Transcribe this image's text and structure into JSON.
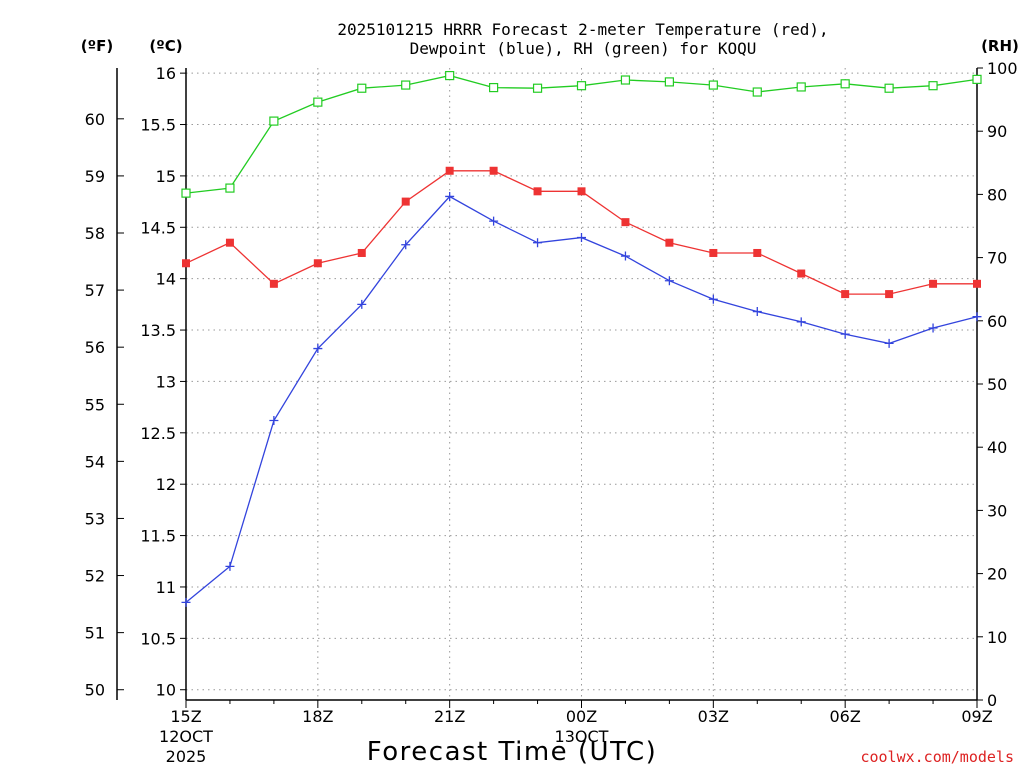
{
  "chart_data": {
    "type": "line",
    "title_line1": "2025101215 HRRR Forecast 2-meter Temperature (red),",
    "title_line2": "Dewpoint (blue), RH (green) for KOQU",
    "unit_labels": {
      "fahrenheit": "(ºF)",
      "celsius": "(ºC)",
      "rh": "(RH)"
    },
    "xlabel": "Forecast Time (UTC)",
    "watermark": "coolwx.com/models",
    "x_hours": [
      0,
      1,
      2,
      3,
      4,
      5,
      6,
      7,
      8,
      9,
      10,
      11,
      12,
      13,
      14,
      15,
      16,
      17,
      18
    ],
    "x_ticks": [
      {
        "hour": 0,
        "label": "15Z",
        "sub1": "12OCT",
        "sub2": "2025"
      },
      {
        "hour": 3,
        "label": "18Z",
        "sub1": "",
        "sub2": ""
      },
      {
        "hour": 6,
        "label": "21Z",
        "sub1": "",
        "sub2": ""
      },
      {
        "hour": 9,
        "label": "00Z",
        "sub1": "13OCT",
        "sub2": ""
      },
      {
        "hour": 12,
        "label": "03Z",
        "sub1": "",
        "sub2": ""
      },
      {
        "hour": 15,
        "label": "06Z",
        "sub1": "",
        "sub2": ""
      },
      {
        "hour": 18,
        "label": "09Z",
        "sub1": "",
        "sub2": ""
      }
    ],
    "celsius_axis": {
      "range": [
        9.9,
        16.05
      ],
      "ticks": [
        10,
        10.5,
        11,
        11.5,
        12,
        12.5,
        13,
        13.5,
        14,
        14.5,
        15,
        15.5,
        16
      ],
      "tick_labels": [
        "10",
        "10.5",
        "11",
        "11.5",
        "12",
        "12.5",
        "13",
        "13.5",
        "14",
        "14.5",
        "15",
        "15.5",
        "16"
      ]
    },
    "fahrenheit_axis": {
      "ticks": [
        50,
        51,
        52,
        53,
        54,
        55,
        56,
        57,
        58,
        59,
        60
      ],
      "tick_labels": [
        "50",
        "51",
        "52",
        "53",
        "54",
        "55",
        "56",
        "57",
        "58",
        "59",
        "60"
      ]
    },
    "rh_axis": {
      "range": [
        0,
        100
      ],
      "ticks": [
        0,
        10,
        20,
        30,
        40,
        50,
        60,
        70,
        80,
        90,
        100
      ],
      "tick_labels": [
        "0",
        "10",
        "20",
        "30",
        "40",
        "50",
        "60",
        "70",
        "80",
        "90",
        "100"
      ]
    },
    "series": [
      {
        "name": "Temperature",
        "axis": "celsius",
        "color": "#ee3333",
        "marker": "filled-square",
        "values": [
          14.15,
          14.35,
          13.95,
          14.15,
          14.25,
          14.75,
          15.05,
          15.05,
          14.85,
          14.85,
          14.55,
          14.35,
          14.25,
          14.25,
          14.05,
          13.85,
          13.85,
          13.95,
          13.95
        ]
      },
      {
        "name": "Dewpoint",
        "axis": "celsius",
        "color": "#3344dd",
        "marker": "plus",
        "values": [
          10.85,
          11.2,
          12.62,
          13.32,
          13.75,
          14.33,
          14.8,
          14.56,
          14.35,
          14.4,
          14.22,
          13.98,
          13.8,
          13.68,
          13.58,
          13.46,
          13.37,
          13.52,
          13.63
        ]
      },
      {
        "name": "RH",
        "axis": "rh",
        "color": "#22cc22",
        "marker": "open-square",
        "values": [
          80.2,
          81.0,
          91.6,
          94.6,
          96.8,
          97.3,
          98.8,
          96.9,
          96.8,
          97.2,
          98.1,
          97.8,
          97.3,
          96.2,
          97.0,
          97.5,
          96.8,
          97.2,
          98.2
        ]
      }
    ]
  }
}
